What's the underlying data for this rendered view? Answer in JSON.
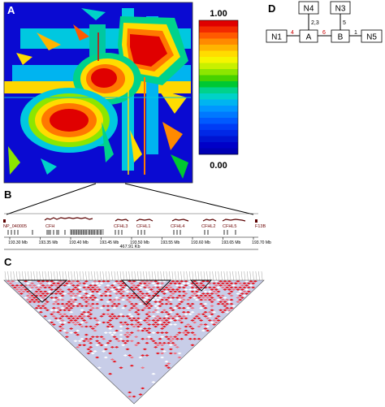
{
  "panels": {
    "a": {
      "label": "A"
    },
    "b": {
      "label": "B"
    },
    "c": {
      "label": "C"
    },
    "d": {
      "label": "D"
    }
  },
  "heatmap": {
    "colorbar": {
      "max_label": "1.00",
      "min_label": "0.00",
      "colors": [
        "#e00000",
        "#f22a00",
        "#ff5a00",
        "#ff8a00",
        "#ffb400",
        "#ffdc00",
        "#f5f500",
        "#c8f000",
        "#8ce600",
        "#46d200",
        "#00c832",
        "#00d28c",
        "#00d2c8",
        "#00b4f0",
        "#0096ff",
        "#0078ff",
        "#005aff",
        "#003cf5",
        "#0028e6",
        "#0014d2",
        "#0000c8",
        "#0000b4"
      ]
    }
  },
  "genes": {
    "names": [
      "NP_040005",
      "CFH",
      "CFHL3",
      "CFHL1",
      "CFHL4",
      "CFHL2",
      "CFHL5",
      "F13B"
    ],
    "axis_ticks": [
      "193.30 Mb",
      "193.35 Mb",
      "193.40 Mb",
      "193.45 Mb",
      "193.50 Mb",
      "193.55 Mb",
      "193.60 Mb",
      "193.65 Mb",
      "193.70 Mb"
    ],
    "span": "467.91 Kb"
  },
  "network": {
    "nodes": [
      "N1",
      "A",
      "B",
      "N5",
      "N4",
      "N3"
    ],
    "edge_labels": {
      "n1_a": "4",
      "a_b": "6",
      "b_n5": "1",
      "n4_a": "2,3",
      "n3_b": "5"
    },
    "colors": {
      "highlight": "#cc0000",
      "normal": "#000000"
    }
  }
}
